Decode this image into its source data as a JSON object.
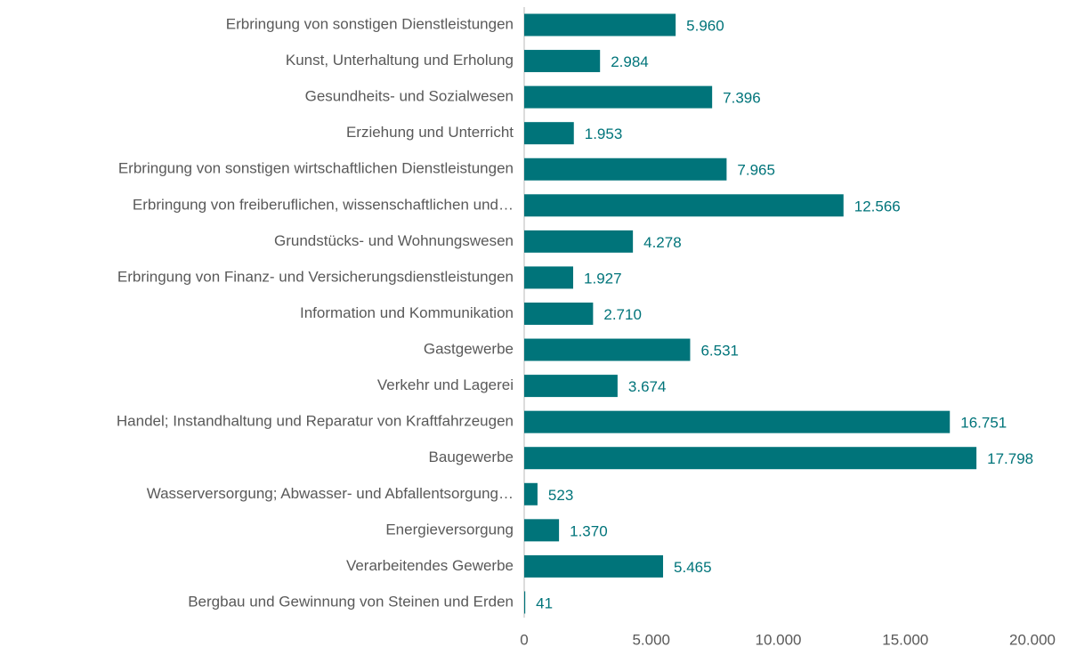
{
  "chart_data": {
    "type": "hbar",
    "categories": [
      "Erbringung von sonstigen Dienstleistungen",
      "Kunst, Unterhaltung und Erholung",
      "Gesundheits- und Sozialwesen",
      "Erziehung und Unterricht",
      "Erbringung von sonstigen wirtschaftlichen Dienstleistungen",
      "Erbringung von freiberuflichen, wissenschaftlichen und…",
      "Grundstücks- und Wohnungswesen",
      "Erbringung von Finanz- und Versicherungsdienstleistungen",
      "Information und Kommunikation",
      "Gastgewerbe",
      "Verkehr und Lagerei",
      "Handel; Instandhaltung und Reparatur von Kraftfahrzeugen",
      "Baugewerbe",
      "Wasserversorgung; Abwasser- und Abfallentsorgung…",
      "Energieversorgung",
      "Verarbeitendes Gewerbe",
      "Bergbau und Gewinnung von Steinen und Erden"
    ],
    "values": [
      5960,
      2984,
      7396,
      1953,
      7965,
      12566,
      4278,
      1927,
      2710,
      6531,
      3674,
      16751,
      17798,
      523,
      1370,
      5465,
      41
    ],
    "value_labels": [
      "5.960",
      "2.984",
      "7.396",
      "1.953",
      "7.965",
      "12.566",
      "4.278",
      "1.927",
      "2.710",
      "6.531",
      "3.674",
      "16.751",
      "17.798",
      "523",
      "1.370",
      "5.465",
      "41"
    ],
    "color": "#00747a",
    "xlim": [
      0,
      20000
    ],
    "xticks": [
      0,
      {
        "value": 5000,
        "label": "5.000"
      },
      {
        "value": 10000,
        "label": "10.000"
      },
      {
        "value": 15000,
        "label": "15.000"
      },
      {
        "value": 20000,
        "label": "20.000"
      }
    ]
  }
}
